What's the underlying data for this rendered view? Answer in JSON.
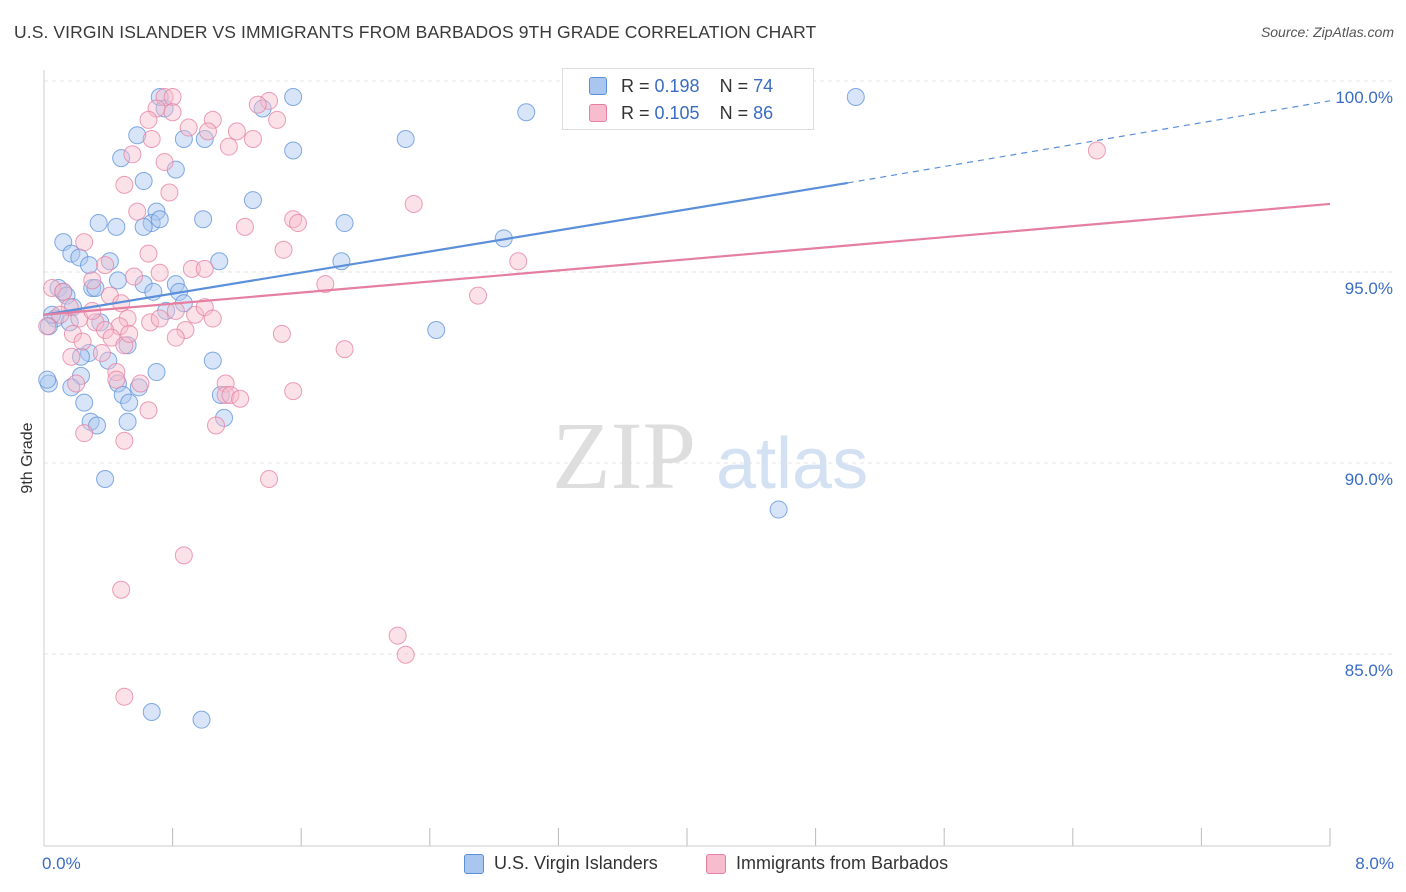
{
  "title": "U.S. VIRGIN ISLANDER VS IMMIGRANTS FROM BARBADOS 9TH GRADE CORRELATION CHART",
  "source": "Source: ZipAtlas.com",
  "watermark": {
    "part1": "ZIP",
    "part2": "atlas"
  },
  "legend": {
    "r_label": "R = ",
    "n_label": "N = ",
    "series": [
      {
        "r": "0.198",
        "n": "74",
        "fill": "#a9c6ef",
        "stroke": "#5b8fd9"
      },
      {
        "r": "0.105",
        "n": "86",
        "fill": "#f7bccd",
        "stroke": "#e57fa1"
      }
    ]
  },
  "bottom_legend": [
    "U.S. Virgin Islanders",
    "Immigrants from Barbados"
  ],
  "chart_data": {
    "type": "scatter",
    "ylabel": "9th Grade",
    "xlim": [
      0,
      8
    ],
    "ylim": [
      80.5,
      100.8
    ],
    "x_tick_labels": [
      "0.0%",
      "8.0%"
    ],
    "y_ticks": [
      85,
      90,
      95,
      100
    ],
    "y_tick_labels": [
      "85.0%",
      "90.0%",
      "95.0%",
      "100.0%"
    ],
    "grid": true,
    "series": [
      {
        "name": "U.S. Virgin Islanders",
        "color": "#5b8fd9",
        "fill": "#a9c6ef",
        "trend": {
          "x0": 0,
          "y0": 94.3,
          "x1": 5.0,
          "y1": 97.75,
          "dash_to_x": 8.0,
          "dash_to_y": 99.9
        },
        "points": [
          [
            0.72,
            100
          ],
          [
            1.55,
            100
          ],
          [
            5.05,
            100
          ],
          [
            0.75,
            99.7
          ],
          [
            1.36,
            99.7
          ],
          [
            3.0,
            99.6
          ],
          [
            0.58,
            99.0
          ],
          [
            0.87,
            98.9
          ],
          [
            1.0,
            98.9
          ],
          [
            2.25,
            98.9
          ],
          [
            1.55,
            98.6
          ],
          [
            0.48,
            98.4
          ],
          [
            0.82,
            98.1
          ],
          [
            0.62,
            97.8
          ],
          [
            1.3,
            97.3
          ],
          [
            0.7,
            97.0
          ],
          [
            0.67,
            96.7
          ],
          [
            0.34,
            96.7
          ],
          [
            0.45,
            96.6
          ],
          [
            0.62,
            96.6
          ],
          [
            0.72,
            96.8
          ],
          [
            0.99,
            96.8
          ],
          [
            1.87,
            96.7
          ],
          [
            0.12,
            96.2
          ],
          [
            2.86,
            96.3
          ],
          [
            0.17,
            95.9
          ],
          [
            0.22,
            95.8
          ],
          [
            0.41,
            95.7
          ],
          [
            0.28,
            95.6
          ],
          [
            1.85,
            95.7
          ],
          [
            1.09,
            95.7
          ],
          [
            0.46,
            95.2
          ],
          [
            0.62,
            95.1
          ],
          [
            0.82,
            95.1
          ],
          [
            0.09,
            95.0
          ],
          [
            0.12,
            94.9
          ],
          [
            0.3,
            95.0
          ],
          [
            0.68,
            94.9
          ],
          [
            0.84,
            94.9
          ],
          [
            0.14,
            94.8
          ],
          [
            0.18,
            94.5
          ],
          [
            0.07,
            94.2
          ],
          [
            0.16,
            94.1
          ],
          [
            0.35,
            94.1
          ],
          [
            0.87,
            94.6
          ],
          [
            0.76,
            94.4
          ],
          [
            0.03,
            94.0
          ],
          [
            2.44,
            93.9
          ],
          [
            0.52,
            93.5
          ],
          [
            0.28,
            93.3
          ],
          [
            0.4,
            93.1
          ],
          [
            0.23,
            93.2
          ],
          [
            1.05,
            93.1
          ],
          [
            0.7,
            92.8
          ],
          [
            0.23,
            92.7
          ],
          [
            0.46,
            92.5
          ],
          [
            0.17,
            92.4
          ],
          [
            0.03,
            92.5
          ],
          [
            0.59,
            92.4
          ],
          [
            0.49,
            92.2
          ],
          [
            0.53,
            92.0
          ],
          [
            1.1,
            92.2
          ],
          [
            0.25,
            92.0
          ],
          [
            1.12,
            91.6
          ],
          [
            0.29,
            91.5
          ],
          [
            0.52,
            91.5
          ],
          [
            0.33,
            91.4
          ],
          [
            0.38,
            90.0
          ],
          [
            4.57,
            89.2
          ],
          [
            0.67,
            83.9
          ],
          [
            0.98,
            83.7
          ],
          [
            0.32,
            95.0
          ],
          [
            0.05,
            94.3
          ],
          [
            0.02,
            92.6
          ]
        ]
      },
      {
        "name": "Immigrants from Barbados",
        "color": "#e57fa1",
        "fill": "#f7bccd",
        "trend": {
          "x0": 0,
          "y0": 94.3,
          "x1": 8.0,
          "y1": 97.2
        },
        "points": [
          [
            0.75,
            100
          ],
          [
            0.8,
            100
          ],
          [
            1.4,
            99.9
          ],
          [
            0.7,
            99.7
          ],
          [
            0.8,
            99.6
          ],
          [
            1.33,
            99.8
          ],
          [
            0.65,
            99.4
          ],
          [
            1.05,
            99.4
          ],
          [
            1.45,
            99.4
          ],
          [
            0.9,
            99.2
          ],
          [
            1.02,
            99.1
          ],
          [
            1.2,
            99.1
          ],
          [
            0.67,
            98.9
          ],
          [
            1.15,
            98.7
          ],
          [
            1.3,
            98.9
          ],
          [
            0.55,
            98.5
          ],
          [
            0.75,
            98.3
          ],
          [
            6.55,
            98.6
          ],
          [
            0.5,
            97.7
          ],
          [
            0.78,
            97.5
          ],
          [
            2.3,
            97.2
          ],
          [
            0.58,
            97.0
          ],
          [
            1.55,
            96.8
          ],
          [
            1.58,
            96.7
          ],
          [
            1.25,
            96.6
          ],
          [
            0.25,
            96.2
          ],
          [
            1.49,
            96.0
          ],
          [
            0.65,
            95.9
          ],
          [
            0.72,
            95.4
          ],
          [
            0.56,
            95.3
          ],
          [
            0.92,
            95.5
          ],
          [
            1.0,
            95.5
          ],
          [
            2.95,
            95.7
          ],
          [
            1.75,
            95.1
          ],
          [
            2.7,
            94.8
          ],
          [
            0.38,
            95.6
          ],
          [
            0.05,
            95.0
          ],
          [
            0.3,
            95.2
          ],
          [
            0.12,
            94.9
          ],
          [
            0.41,
            94.8
          ],
          [
            0.48,
            94.6
          ],
          [
            0.16,
            94.5
          ],
          [
            0.1,
            94.3
          ],
          [
            0.52,
            94.2
          ],
          [
            0.82,
            94.4
          ],
          [
            0.94,
            94.3
          ],
          [
            1.0,
            94.5
          ],
          [
            0.22,
            94.2
          ],
          [
            0.32,
            94.1
          ],
          [
            0.47,
            94.0
          ],
          [
            0.66,
            94.1
          ],
          [
            0.72,
            94.2
          ],
          [
            0.02,
            94.0
          ],
          [
            0.18,
            93.8
          ],
          [
            0.38,
            93.9
          ],
          [
            1.05,
            94.2
          ],
          [
            0.88,
            93.9
          ],
          [
            1.48,
            93.8
          ],
          [
            0.42,
            93.7
          ],
          [
            0.82,
            93.7
          ],
          [
            0.24,
            93.6
          ],
          [
            0.5,
            93.5
          ],
          [
            1.87,
            93.4
          ],
          [
            0.36,
            93.3
          ],
          [
            0.17,
            93.2
          ],
          [
            0.45,
            92.8
          ],
          [
            0.2,
            92.5
          ],
          [
            0.45,
            92.6
          ],
          [
            0.6,
            92.5
          ],
          [
            1.13,
            92.5
          ],
          [
            1.55,
            92.3
          ],
          [
            1.13,
            92.2
          ],
          [
            1.16,
            92.2
          ],
          [
            1.22,
            92.1
          ],
          [
            0.65,
            91.8
          ],
          [
            1.07,
            91.4
          ],
          [
            0.25,
            91.2
          ],
          [
            0.5,
            91.0
          ],
          [
            1.4,
            90.0
          ],
          [
            0.87,
            88.0
          ],
          [
            0.48,
            87.1
          ],
          [
            2.2,
            85.9
          ],
          [
            2.25,
            85.4
          ],
          [
            0.5,
            84.3
          ],
          [
            0.53,
            93.8
          ],
          [
            0.3,
            94.4
          ]
        ]
      }
    ]
  }
}
